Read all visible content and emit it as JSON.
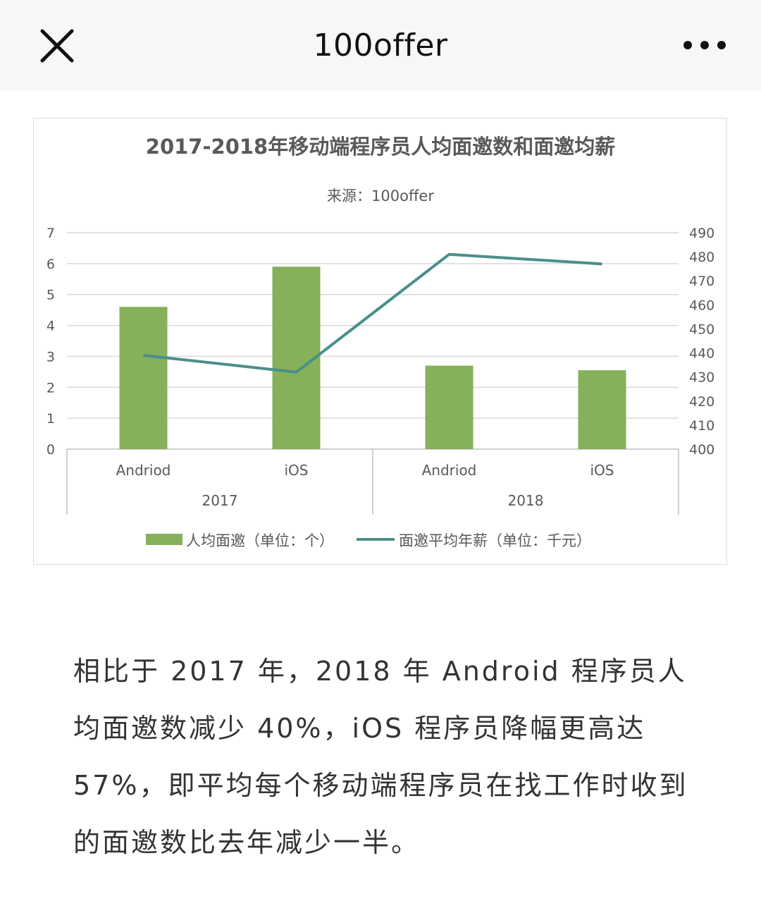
{
  "nav": {
    "title": "100offer",
    "close_icon": "close-icon",
    "more_icon": "more-dots-icon"
  },
  "chart_data": {
    "type": "bar",
    "title": "2017-2018年移动端程序员人均面邀数和面邀均薪",
    "subtitle": "来源：100offer",
    "categories": [
      "Andriod",
      "iOS",
      "Andriod",
      "iOS"
    ],
    "groups": [
      "2017",
      "2017",
      "2018",
      "2018"
    ],
    "group_labels": [
      "2017",
      "2018"
    ],
    "series": [
      {
        "name": "人均面邀（单位：个）",
        "type": "bar",
        "axis": "left",
        "color": "#86b05a",
        "values": [
          4.6,
          5.9,
          2.7,
          2.55
        ]
      },
      {
        "name": "面邀平均年薪（单位：千元）",
        "type": "line",
        "axis": "right",
        "color": "#4a8f8a",
        "values": [
          439,
          432,
          481,
          477
        ]
      }
    ],
    "y_left": {
      "min": 0,
      "max": 7,
      "ticks": [
        "0",
        "1",
        "2",
        "3",
        "4",
        "5",
        "6",
        "7"
      ]
    },
    "y_right": {
      "min": 400,
      "max": 490,
      "ticks": [
        "400",
        "410",
        "420",
        "430",
        "440",
        "450",
        "460",
        "470",
        "480",
        "490"
      ]
    },
    "grid": true,
    "legend_position": "bottom"
  },
  "article": {
    "paragraph": "相比于 2017 年，2018 年 Android 程序员人均面邀数减少 40%，iOS 程序员降幅更高达 57%，即平均每个移动端程序员在找工作时收到的面邀数比去年减少一半。"
  }
}
